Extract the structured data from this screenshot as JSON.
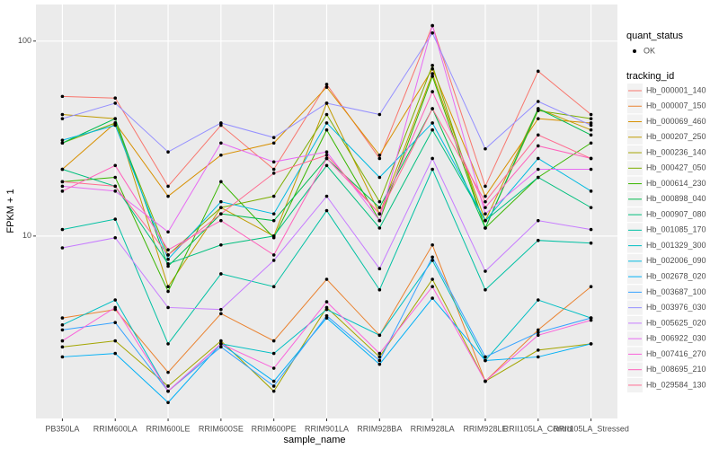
{
  "chart_data": {
    "type": "line",
    "x_label": "sample_name",
    "y_label": "FPKM + 1",
    "categories": [
      "PB350LA",
      "RRIM600LA",
      "RRIM600LE",
      "RRIM600SE",
      "RRIM600PE",
      "RRIM901LA",
      "RRIM928BA",
      "RRIM928LA",
      "RRIM928LE",
      "RRII105LA_Control",
      "RRII105LA_Stressed"
    ],
    "ylim": [
      1.16,
      154
    ],
    "yticks": [
      10,
      100
    ],
    "log_y": true,
    "grid": true,
    "point_color": "#000000",
    "status_legend": {
      "title": "quant_status",
      "items": [
        "OK"
      ]
    },
    "legend_title": "tracking_id",
    "series": [
      {
        "name": "Hb_000001_140",
        "color": "#F8766D",
        "values": [
          52,
          51,
          18,
          37,
          22,
          60,
          25,
          120,
          18,
          70,
          42
        ]
      },
      {
        "name": "Hb_000007_150",
        "color": "#EA8331",
        "values": [
          3.8,
          4.2,
          2.0,
          4.0,
          2.9,
          6.0,
          3.1,
          9.0,
          1.8,
          3.3,
          5.5
        ]
      },
      {
        "name": "Hb_000069_460",
        "color": "#D89000",
        "values": [
          22,
          38,
          16,
          26,
          30,
          58,
          26,
          72,
          16,
          40,
          38
        ]
      },
      {
        "name": "Hb_000207_250",
        "color": "#C09B00",
        "values": [
          42,
          40,
          5.5,
          14,
          10,
          48,
          13,
          68,
          12,
          45,
          35
        ]
      },
      {
        "name": "Hb_000236_140",
        "color": "#A3A500",
        "values": [
          2.7,
          2.9,
          1.7,
          2.9,
          1.6,
          4.3,
          2.4,
          6.0,
          1.8,
          2.6,
          2.8
        ]
      },
      {
        "name": "Hb_000427_050",
        "color": "#7CAE00",
        "values": [
          30,
          38,
          8,
          14,
          16,
          42,
          15,
          75,
          11,
          44,
          40
        ]
      },
      {
        "name": "Hb_000614_230",
        "color": "#39B600",
        "values": [
          19,
          20,
          5.2,
          19,
          9.8,
          35,
          12,
          66,
          11,
          20,
          30
        ]
      },
      {
        "name": "Hb_000898_040",
        "color": "#00BB4E",
        "values": [
          30,
          40,
          7,
          13,
          12,
          25,
          14,
          45,
          11,
          45,
          33
        ]
      },
      {
        "name": "Hb_000907_080",
        "color": "#00BF7D",
        "values": [
          22,
          18,
          7.2,
          9,
          10,
          23,
          11,
          35,
          12,
          20,
          14
        ]
      },
      {
        "name": "Hb_001085_170",
        "color": "#00C1A3",
        "values": [
          10.8,
          12.2,
          2.8,
          6.4,
          5.5,
          13.5,
          5.3,
          22,
          5.3,
          9.5,
          9.2
        ]
      },
      {
        "name": "Hb_001329_300",
        "color": "#00BFC4",
        "values": [
          3.5,
          4.7,
          1.6,
          2.8,
          2.5,
          4.2,
          3.1,
          7.5,
          2.3,
          4.7,
          3.8
        ]
      },
      {
        "name": "Hb_002006_090",
        "color": "#00BAE0",
        "values": [
          31,
          37,
          7.6,
          15,
          13,
          38,
          20,
          38,
          12,
          25,
          17
        ]
      },
      {
        "name": "Hb_002678_020",
        "color": "#00B0F6",
        "values": [
          2.4,
          2.5,
          1.4,
          2.8,
          1.8,
          3.8,
          2.2,
          4.8,
          2.3,
          2.4,
          2.8
        ]
      },
      {
        "name": "Hb_003687_100",
        "color": "#35A2FF",
        "values": [
          3.3,
          3.6,
          1.6,
          2.7,
          1.7,
          3.9,
          2.3,
          7.8,
          2.4,
          3.2,
          3.8
        ]
      },
      {
        "name": "Hb_003976_030",
        "color": "#9590FF",
        "values": [
          40,
          48,
          27,
          38,
          32,
          48,
          42,
          110,
          28,
          49,
          37
        ]
      },
      {
        "name": "Hb_005625_020",
        "color": "#C77CFF",
        "values": [
          8.7,
          9.8,
          4.3,
          4.2,
          7.5,
          16,
          6.8,
          25,
          6.6,
          12,
          10.8
        ]
      },
      {
        "name": "Hb_006922_030",
        "color": "#E76BF3",
        "values": [
          18,
          17,
          10.5,
          30,
          24,
          27,
          12,
          120,
          13,
          22,
          22
        ]
      },
      {
        "name": "Hb_007416_270",
        "color": "#FA62DB",
        "values": [
          2.9,
          4.3,
          1.6,
          2.8,
          2.1,
          4.6,
          2.5,
          5.5,
          1.8,
          3.1,
          3.7
        ]
      },
      {
        "name": "Hb_008695_210",
        "color": "#FF62BC",
        "values": [
          17,
          23,
          8.5,
          12,
          8,
          25,
          13,
          55,
          14,
          29,
          25
        ]
      },
      {
        "name": "Hb_029584_130",
        "color": "#FF6C91",
        "values": [
          19,
          18,
          8,
          13,
          21,
          26,
          13,
          45,
          15,
          33,
          25
        ]
      }
    ]
  }
}
